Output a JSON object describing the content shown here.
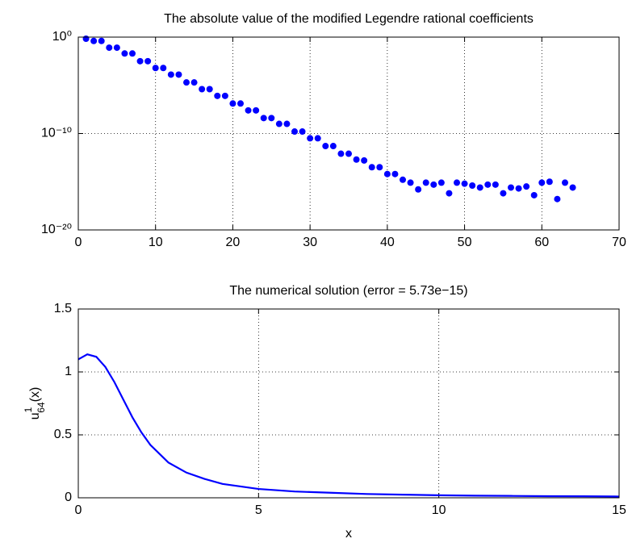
{
  "chart_data": [
    {
      "type": "scatter",
      "title": "The absolute value of the modified Legendre rational coefficients",
      "x": [
        1,
        2,
        3,
        4,
        5,
        6,
        7,
        8,
        9,
        10,
        11,
        12,
        13,
        14,
        15,
        16,
        17,
        18,
        19,
        20,
        21,
        22,
        23,
        24,
        25,
        26,
        27,
        28,
        29,
        30,
        31,
        32,
        33,
        34,
        35,
        36,
        37,
        38,
        39,
        40,
        41,
        42,
        43,
        44,
        45,
        46,
        47,
        48,
        49,
        50,
        51,
        52,
        53,
        54,
        55,
        56,
        57,
        58,
        59,
        60,
        61,
        62,
        63,
        64
      ],
      "values": [
        0.68,
        0.4,
        0.4,
        0.08,
        0.08,
        0.02,
        0.02,
        0.0032,
        0.0032,
        0.00063,
        0.00063,
        0.00013,
        0.00013,
        2e-05,
        2e-05,
        4e-06,
        4e-06,
        8e-07,
        8e-07,
        1.3e-07,
        1.3e-07,
        2.5e-08,
        2.5e-08,
        4e-09,
        4e-09,
        1e-09,
        1e-09,
        1.6e-10,
        1.6e-10,
        3.2e-11,
        3.2e-11,
        5e-12,
        5e-12,
        8e-13,
        8e-13,
        2e-13,
        1.6e-13,
        3.2e-14,
        3.2e-14,
        6.3e-15,
        6.3e-15,
        1.6e-15,
        8e-16,
        1.6e-16,
        8e-16,
        5e-16,
        8e-16,
        6.3e-17,
        8e-16,
        6.3e-16,
        4e-16,
        2.5e-16,
        5e-16,
        5e-16,
        6.3e-17,
        2.5e-16,
        2e-16,
        3.2e-16,
        4e-17,
        8e-16,
        1e-15,
        1.6e-17,
        8e-16,
        2.5e-16
      ],
      "color": "#0000ff",
      "xlim": [
        0,
        70
      ],
      "xticks": [
        0,
        10,
        20,
        30,
        40,
        50,
        60,
        70
      ],
      "ylim": [
        1e-20,
        1
      ],
      "yscale": "log",
      "yticks": [
        {
          "value": 1e-20,
          "label": "10⁻²⁰"
        },
        {
          "value": 1e-10,
          "label": "10⁻¹⁰"
        },
        {
          "value": 1,
          "label": "10⁰"
        }
      ],
      "grid": true
    },
    {
      "type": "line",
      "title": "The numerical solution (error = 5.73e−15)",
      "xlabel": "x",
      "ylabel": {
        "base": "u",
        "sup": "1",
        "sub": "64",
        "arg": "(x)"
      },
      "x": [
        0,
        0.25,
        0.5,
        0.75,
        1,
        1.25,
        1.5,
        1.75,
        2,
        2.5,
        3,
        3.5,
        4,
        4.5,
        5,
        6,
        7,
        8,
        9,
        10,
        11,
        12,
        13,
        14,
        15
      ],
      "values": [
        1.1,
        1.14,
        1.12,
        1.04,
        0.92,
        0.78,
        0.64,
        0.52,
        0.42,
        0.28,
        0.2,
        0.15,
        0.11,
        0.09,
        0.07,
        0.05,
        0.04,
        0.03,
        0.025,
        0.02,
        0.017,
        0.015,
        0.013,
        0.012,
        0.01
      ],
      "color": "#0000ff",
      "xlim": [
        0,
        15
      ],
      "xticks": [
        0,
        5,
        10,
        15
      ],
      "ylim": [
        0,
        1.5
      ],
      "yticks": [
        0,
        0.5,
        1,
        1.5
      ],
      "grid": true
    }
  ]
}
